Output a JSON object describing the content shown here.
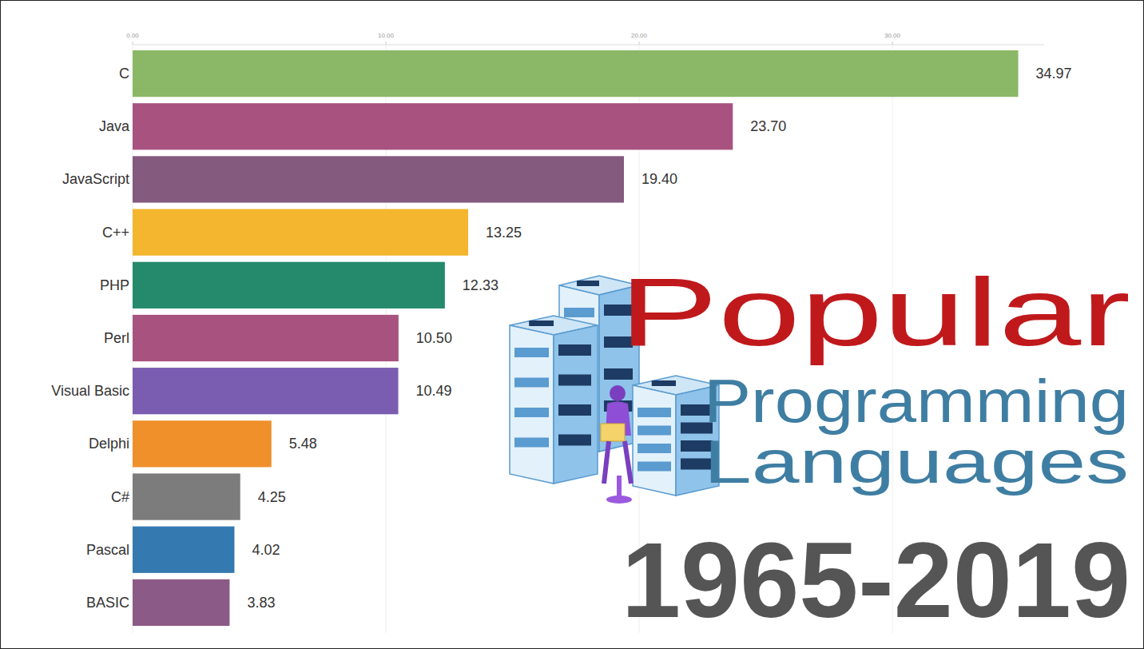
{
  "chart_data": {
    "type": "bar",
    "orientation": "horizontal",
    "title": "Popular",
    "subtitle": "Programming Languages",
    "annotations": [
      "1965-2019"
    ],
    "categories": [
      "C",
      "Java",
      "JavaScript",
      "C++",
      "PHP",
      "Perl",
      "Visual Basic",
      "Delphi",
      "C#",
      "Pascal",
      "BASIC"
    ],
    "values": [
      34.97,
      23.7,
      19.4,
      13.25,
      12.33,
      10.5,
      10.49,
      5.48,
      4.25,
      4.02,
      3.83
    ],
    "value_labels": [
      "34.97",
      "23.70",
      "19.40",
      "13.25",
      "12.33",
      "10.50",
      "10.49",
      "5.48",
      "4.25",
      "4.02",
      "3.83"
    ],
    "colors": [
      "#8ab866",
      "#a8527f",
      "#845a7e",
      "#f3b62e",
      "#258a6c",
      "#a8527f",
      "#7a5cb0",
      "#f0902a",
      "#7c7c7c",
      "#3579b1",
      "#8c5a86"
    ],
    "xlim": [
      0,
      36
    ],
    "xticks": [
      {
        "value": 0,
        "label": "0.00"
      },
      {
        "value": 10,
        "label": "10.00"
      },
      {
        "value": 20,
        "label": "20.00"
      },
      {
        "value": 30,
        "label": "30.00"
      }
    ],
    "grid": true,
    "data_labels": true
  }
}
